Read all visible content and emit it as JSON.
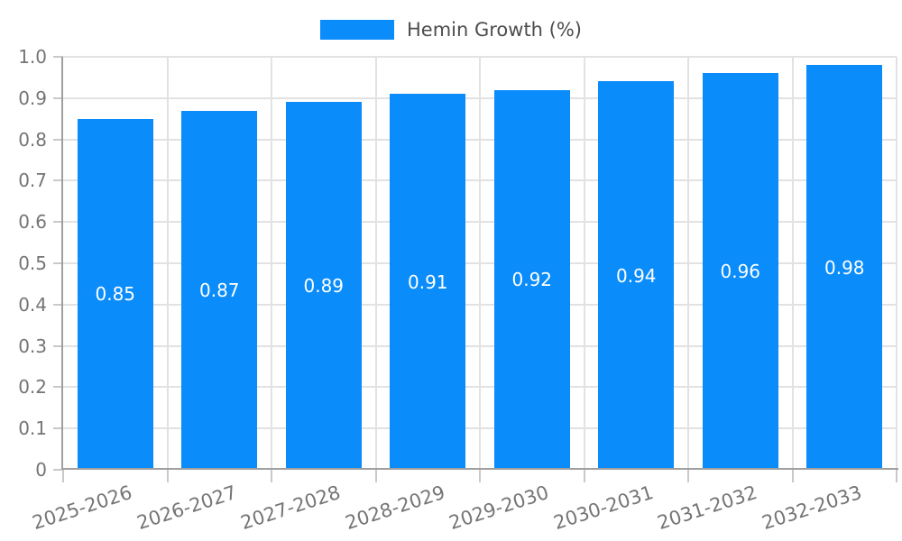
{
  "chart_data": {
    "type": "bar",
    "title": "",
    "legend": {
      "position": "top-center",
      "label": "Hemin Growth (%)"
    },
    "categories": [
      "2025-2026",
      "2026-2027",
      "2027-2028",
      "2028-2029",
      "2029-2030",
      "2030-2031",
      "2031-2032",
      "2032-2033"
    ],
    "series": [
      {
        "name": "Hemin Growth (%)",
        "values": [
          0.85,
          0.87,
          0.89,
          0.91,
          0.92,
          0.94,
          0.96,
          0.98
        ],
        "value_labels": [
          "0.85",
          "0.87",
          "0.89",
          "0.91",
          "0.92",
          "0.94",
          "0.96",
          "0.98"
        ]
      }
    ],
    "xlabel": "",
    "ylabel": "",
    "ylim": [
      0,
      1.0
    ],
    "grid": true,
    "y_axis": {
      "ticks": [
        {
          "label": "0",
          "value": 0.0
        },
        {
          "label": "0.1",
          "value": 0.1
        },
        {
          "label": "0.2",
          "value": 0.2
        },
        {
          "label": "0.3",
          "value": 0.3
        },
        {
          "label": "0.4",
          "value": 0.4
        },
        {
          "label": "0.5",
          "value": 0.5
        },
        {
          "label": "0.6",
          "value": 0.6
        },
        {
          "label": "0.7",
          "value": 0.7
        },
        {
          "label": "0.8",
          "value": 0.8
        },
        {
          "label": "0.9",
          "value": 0.9
        },
        {
          "label": "1.0",
          "value": 1.0
        }
      ]
    },
    "colors": {
      "bar": "#0a8cfa",
      "grid": "#e2e2e2",
      "axis_line": "#9f9f9f",
      "tick": "#c9c9c9",
      "axis_text": "#757575",
      "value_text": "#ffffff",
      "legend_text": "#4d4d4d",
      "background": "#ffffff"
    }
  }
}
